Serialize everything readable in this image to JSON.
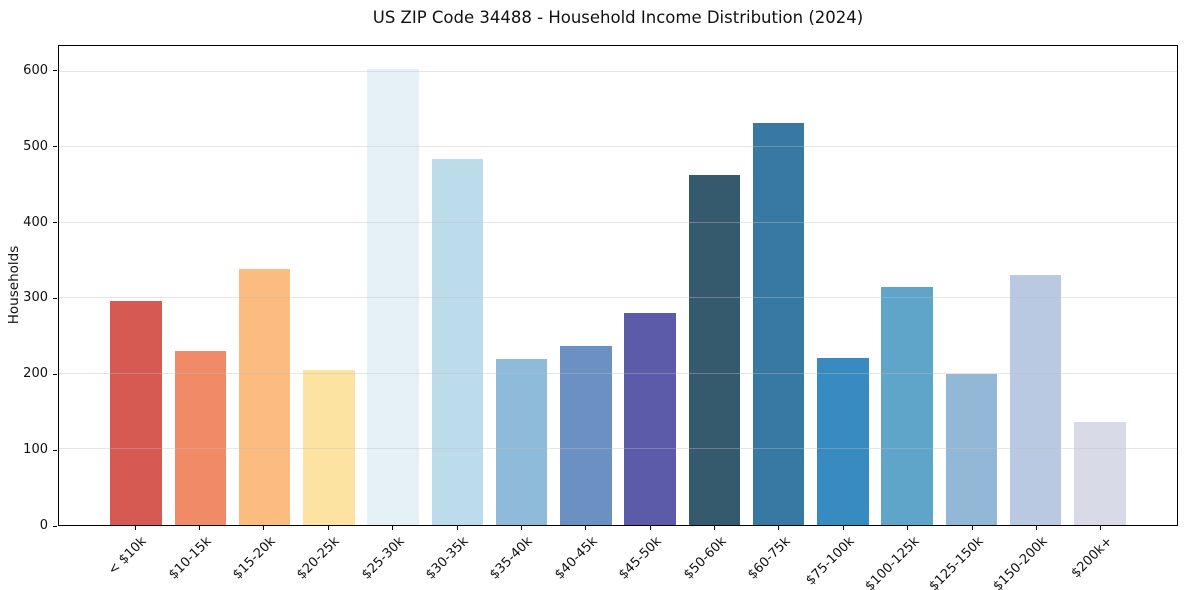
{
  "chart_data": {
    "type": "bar",
    "title": "US ZIP Code 34488 - Household Income Distribution (2024)",
    "xlabel": "",
    "ylabel": "Households",
    "categories": [
      "< $10k",
      "$10-15k",
      "$15-20k",
      "$20-25k",
      "$25-30k",
      "$30-35k",
      "$35-40k",
      "$40-45k",
      "$45-50k",
      "$50-60k",
      "$60-75k",
      "$75-100k",
      "$100-125k",
      "$125-150k",
      "$150-200k",
      "$200k+"
    ],
    "values": [
      297,
      230,
      339,
      205,
      604,
      484,
      220,
      237,
      281,
      463,
      532,
      221,
      315,
      200,
      331,
      136
    ],
    "bar_colors": [
      "#d65a52",
      "#f18a66",
      "#fcbc7f",
      "#fde3a2",
      "#e6f0f7",
      "#bcdcec",
      "#8fbbdb",
      "#6b91c3",
      "#5c5baa",
      "#365a6d",
      "#3779a3",
      "#388bc0",
      "#5fa4c9",
      "#93b8d7",
      "#b8c9e1",
      "#d8dae8"
    ],
    "ylim": [
      0,
      634
    ],
    "yticks": [
      0,
      100,
      200,
      300,
      400,
      500,
      600
    ],
    "grid": "horizontal",
    "legend": "none",
    "background_color": "#ffffff",
    "spine_color": "#000000",
    "gridline_color": "#bebec3"
  }
}
